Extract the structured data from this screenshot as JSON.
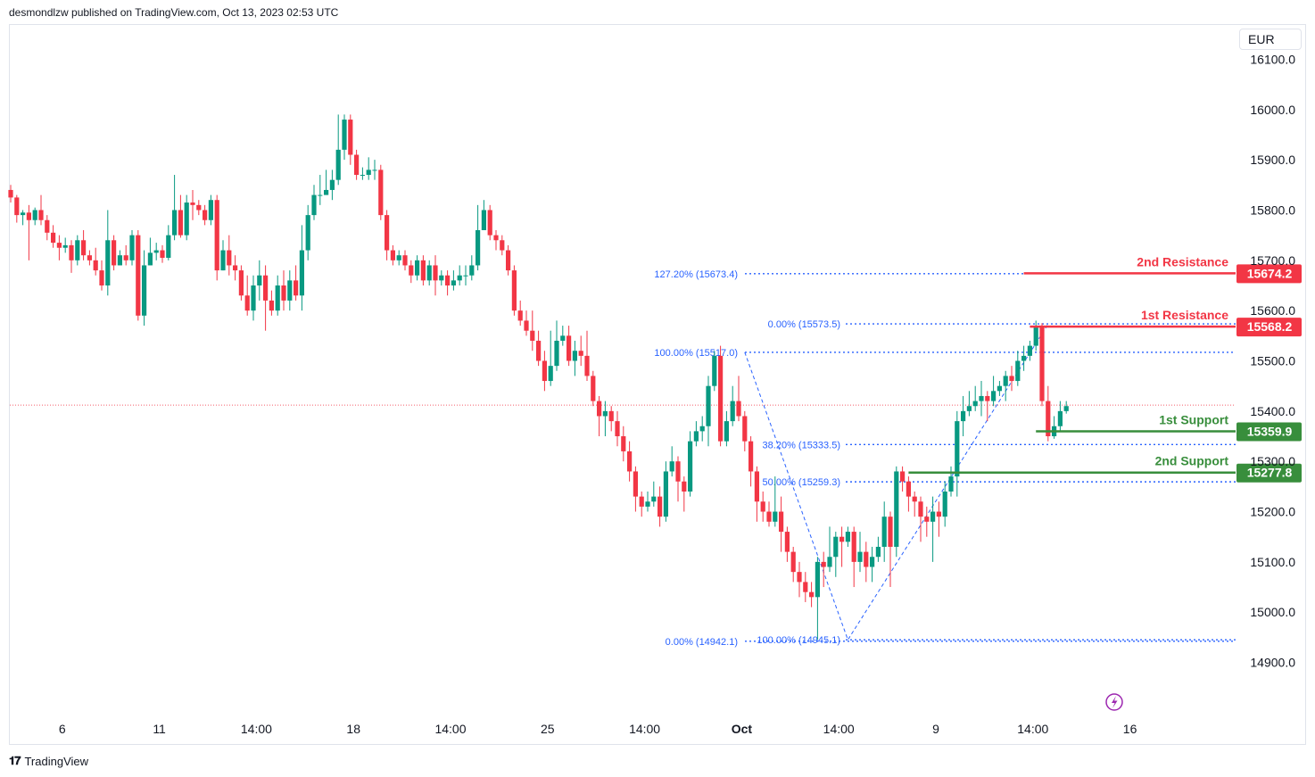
{
  "header": {
    "published": "desmondlzw published on TradingView.com, Oct 13, 2023 02:53 UTC"
  },
  "currency": "EUR",
  "footer": {
    "brand": "TradingView",
    "brand_icon": "tradingview-logo-icon"
  },
  "colors": {
    "up": "#089981",
    "down": "#f23645",
    "fib": "#2962ff",
    "fib_text": "#2962ff",
    "resistance": "#f23645",
    "support": "#388e3c",
    "last_price": "#f23645"
  },
  "chart_data": {
    "type": "candlestick",
    "title": "",
    "ylim": [
      14830,
      16115
    ],
    "y_ticks": [
      16100.0,
      16000.0,
      15900.0,
      15800.0,
      15700.0,
      15600.0,
      15500.0,
      15400.0,
      15300.0,
      15200.0,
      15100.0,
      15000.0,
      14900.0
    ],
    "x_ticks": [
      {
        "label": "6",
        "bar": 8.5
      },
      {
        "label": "11",
        "bar": 24.5
      },
      {
        "label": "14:00",
        "bar": 40.5
      },
      {
        "label": "18",
        "bar": 56.5
      },
      {
        "label": "14:00",
        "bar": 72.5
      },
      {
        "label": "25",
        "bar": 88.5
      },
      {
        "label": "14:00",
        "bar": 104.5
      },
      {
        "label": "Oct",
        "bar": 120.5,
        "bold": true
      },
      {
        "label": "14:00",
        "bar": 136.5
      },
      {
        "label": "9",
        "bar": 152.5
      },
      {
        "label": "14:00",
        "bar": 168.5
      },
      {
        "label": "16",
        "bar": 184.5
      }
    ],
    "current_price": 15412,
    "candles": [
      [
        15840,
        15825,
        15850,
        15815
      ],
      [
        15825,
        15790,
        15830,
        15775
      ],
      [
        15790,
        15795,
        15800,
        15770
      ],
      [
        15795,
        15780,
        15810,
        15700
      ],
      [
        15780,
        15800,
        15805,
        15770
      ],
      [
        15800,
        15780,
        15830,
        15770
      ],
      [
        15780,
        15755,
        15790,
        15740
      ],
      [
        15755,
        15735,
        15770,
        15725
      ],
      [
        15735,
        15725,
        15750,
        15700
      ],
      [
        15725,
        15730,
        15745,
        15715
      ],
      [
        15730,
        15700,
        15740,
        15675
      ],
      [
        15700,
        15740,
        15750,
        15690
      ],
      [
        15740,
        15710,
        15760,
        15700
      ],
      [
        15710,
        15700,
        15720,
        15690
      ],
      [
        15700,
        15680,
        15725,
        15670
      ],
      [
        15680,
        15650,
        15700,
        15640
      ],
      [
        15650,
        15740,
        15800,
        15630
      ],
      [
        15740,
        15690,
        15750,
        15680
      ],
      [
        15690,
        15710,
        15720,
        15690
      ],
      [
        15710,
        15700,
        15730,
        15690
      ],
      [
        15700,
        15750,
        15760,
        15690
      ],
      [
        15750,
        15590,
        15760,
        15580
      ],
      [
        15590,
        15690,
        15720,
        15570
      ],
      [
        15690,
        15715,
        15745,
        15690
      ],
      [
        15715,
        15720,
        15735,
        15700
      ],
      [
        15720,
        15705,
        15730,
        15695
      ],
      [
        15705,
        15750,
        15770,
        15700
      ],
      [
        15750,
        15800,
        15870,
        15740
      ],
      [
        15800,
        15750,
        15830,
        15745
      ],
      [
        15750,
        15815,
        15830,
        15740
      ],
      [
        15815,
        15810,
        15840,
        15780
      ],
      [
        15810,
        15800,
        15820,
        15790
      ],
      [
        15800,
        15780,
        15810,
        15770
      ],
      [
        15780,
        15820,
        15830,
        15770
      ],
      [
        15820,
        15680,
        15830,
        15660
      ],
      [
        15680,
        15720,
        15740,
        15680
      ],
      [
        15720,
        15690,
        15750,
        15670
      ],
      [
        15690,
        15680,
        15710,
        15660
      ],
      [
        15680,
        15630,
        15690,
        15620
      ],
      [
        15630,
        15600,
        15670,
        15590
      ],
      [
        15600,
        15650,
        15670,
        15580
      ],
      [
        15650,
        15670,
        15700,
        15620
      ],
      [
        15670,
        15620,
        15690,
        15560
      ],
      [
        15620,
        15600,
        15640,
        15590
      ],
      [
        15600,
        15650,
        15670,
        15590
      ],
      [
        15650,
        15620,
        15680,
        15600
      ],
      [
        15620,
        15660,
        15680,
        15600
      ],
      [
        15660,
        15630,
        15690,
        15620
      ],
      [
        15630,
        15720,
        15770,
        15600
      ],
      [
        15720,
        15790,
        15810,
        15700
      ],
      [
        15790,
        15830,
        15850,
        15780
      ],
      [
        15830,
        15830,
        15870,
        15810
      ],
      [
        15830,
        15840,
        15880,
        15830
      ],
      [
        15840,
        15860,
        15880,
        15820
      ],
      [
        15860,
        15920,
        15990,
        15850
      ],
      [
        15920,
        15980,
        15990,
        15900
      ],
      [
        15980,
        15910,
        15990,
        15890
      ],
      [
        15910,
        15870,
        15920,
        15860
      ],
      [
        15870,
        15870,
        15885,
        15860
      ],
      [
        15870,
        15880,
        15905,
        15860
      ],
      [
        15880,
        15880,
        15900,
        15860
      ],
      [
        15880,
        15790,
        15890,
        15780
      ],
      [
        15790,
        15720,
        15800,
        15700
      ],
      [
        15720,
        15700,
        15730,
        15690
      ],
      [
        15700,
        15710,
        15720,
        15690
      ],
      [
        15710,
        15690,
        15720,
        15680
      ],
      [
        15690,
        15670,
        15700,
        15655
      ],
      [
        15670,
        15700,
        15710,
        15660
      ],
      [
        15700,
        15660,
        15710,
        15650
      ],
      [
        15660,
        15690,
        15700,
        15650
      ],
      [
        15690,
        15660,
        15710,
        15630
      ],
      [
        15660,
        15670,
        15680,
        15650
      ],
      [
        15670,
        15650,
        15680,
        15630
      ],
      [
        15650,
        15660,
        15680,
        15640
      ],
      [
        15660,
        15670,
        15690,
        15650
      ],
      [
        15670,
        15670,
        15690,
        15650
      ],
      [
        15670,
        15690,
        15710,
        15660
      ],
      [
        15690,
        15760,
        15810,
        15680
      ],
      [
        15760,
        15800,
        15820,
        15760
      ],
      [
        15800,
        15750,
        15810,
        15740
      ],
      [
        15750,
        15740,
        15760,
        15720
      ],
      [
        15740,
        15720,
        15750,
        15710
      ],
      [
        15720,
        15680,
        15730,
        15670
      ],
      [
        15680,
        15600,
        15690,
        15590
      ],
      [
        15600,
        15580,
        15620,
        15570
      ],
      [
        15580,
        15560,
        15600,
        15550
      ],
      [
        15560,
        15540,
        15600,
        15520
      ],
      [
        15540,
        15500,
        15560,
        15490
      ],
      [
        15500,
        15460,
        15520,
        15440
      ],
      [
        15460,
        15490,
        15560,
        15450
      ],
      [
        15490,
        15540,
        15580,
        15480
      ],
      [
        15540,
        15550,
        15570,
        15530
      ],
      [
        15550,
        15500,
        15570,
        15490
      ],
      [
        15500,
        15520,
        15540,
        15470
      ],
      [
        15520,
        15510,
        15550,
        15490
      ],
      [
        15510,
        15470,
        15560,
        15460
      ],
      [
        15470,
        15420,
        15480,
        15410
      ],
      [
        15420,
        15390,
        15430,
        15350
      ],
      [
        15390,
        15400,
        15420,
        15350
      ],
      [
        15400,
        15380,
        15410,
        15360
      ],
      [
        15380,
        15350,
        15400,
        15330
      ],
      [
        15350,
        15320,
        15370,
        15300
      ],
      [
        15320,
        15280,
        15340,
        15260
      ],
      [
        15280,
        15230,
        15290,
        15200
      ],
      [
        15230,
        15210,
        15240,
        15190
      ],
      [
        15210,
        15220,
        15240,
        15200
      ],
      [
        15220,
        15230,
        15260,
        15210
      ],
      [
        15230,
        15190,
        15250,
        15170
      ],
      [
        15190,
        15280,
        15300,
        15180
      ],
      [
        15280,
        15300,
        15330,
        15270
      ],
      [
        15300,
        15260,
        15310,
        15220
      ],
      [
        15260,
        15240,
        15270,
        15200
      ],
      [
        15240,
        15340,
        15360,
        15230
      ],
      [
        15340,
        15360,
        15380,
        15330
      ],
      [
        15360,
        15370,
        15390,
        15340
      ],
      [
        15370,
        15450,
        15470,
        15330
      ],
      [
        15450,
        15510,
        15520,
        15440
      ],
      [
        15510,
        15340,
        15530,
        15330
      ],
      [
        15340,
        15380,
        15400,
        15330
      ],
      [
        15380,
        15420,
        15450,
        15370
      ],
      [
        15420,
        15390,
        15470,
        15380
      ],
      [
        15390,
        15340,
        15400,
        15320
      ],
      [
        15340,
        15280,
        15350,
        15250
      ],
      [
        15280,
        15220,
        15290,
        15180
      ],
      [
        15220,
        15200,
        15240,
        15180
      ],
      [
        15200,
        15180,
        15220,
        15170
      ],
      [
        15180,
        15200,
        15270,
        15170
      ],
      [
        15200,
        15160,
        15230,
        15120
      ],
      [
        15160,
        15120,
        15170,
        15100
      ],
      [
        15120,
        15080,
        15130,
        15060
      ],
      [
        15080,
        15060,
        15100,
        15030
      ],
      [
        15060,
        15040,
        15080,
        15020
      ],
      [
        15040,
        15030,
        15060,
        15010
      ],
      [
        15030,
        15100,
        15110,
        14945
      ],
      [
        15100,
        15090,
        15120,
        15050
      ],
      [
        15090,
        15110,
        15170,
        15080
      ],
      [
        15110,
        15150,
        15160,
        15070
      ],
      [
        15150,
        15140,
        15170,
        15090
      ],
      [
        15140,
        15160,
        15170,
        15130
      ],
      [
        15160,
        15100,
        15170,
        15050
      ],
      [
        15100,
        15120,
        15160,
        15080
      ],
      [
        15120,
        15090,
        15140,
        15060
      ],
      [
        15090,
        15110,
        15130,
        15060
      ],
      [
        15110,
        15130,
        15150,
        15100
      ],
      [
        15130,
        15190,
        15220,
        15100
      ],
      [
        15190,
        15130,
        15200,
        15050
      ],
      [
        15130,
        15280,
        15290,
        15110
      ],
      [
        15280,
        15260,
        15290,
        15240
      ],
      [
        15260,
        15230,
        15270,
        15200
      ],
      [
        15230,
        15220,
        15240,
        15190
      ],
      [
        15220,
        15190,
        15230,
        15140
      ],
      [
        15190,
        15180,
        15210,
        15150
      ],
      [
        15180,
        15200,
        15230,
        15100
      ],
      [
        15200,
        15190,
        15220,
        15150
      ],
      [
        15190,
        15240,
        15260,
        15170
      ],
      [
        15240,
        15270,
        15290,
        15230
      ],
      [
        15270,
        15380,
        15400,
        15230
      ],
      [
        15380,
        15400,
        15430,
        15350
      ],
      [
        15400,
        15410,
        15440,
        15390
      ],
      [
        15410,
        15420,
        15450,
        15400
      ],
      [
        15420,
        15430,
        15460,
        15390
      ],
      [
        15430,
        15420,
        15440,
        15380
      ],
      [
        15420,
        15440,
        15470,
        15410
      ],
      [
        15440,
        15450,
        15460,
        15430
      ],
      [
        15450,
        15470,
        15480,
        15420
      ],
      [
        15470,
        15460,
        15490,
        15440
      ],
      [
        15460,
        15500,
        15520,
        15450
      ],
      [
        15500,
        15510,
        15530,
        15480
      ],
      [
        15510,
        15530,
        15540,
        15500
      ],
      [
        15530,
        15570,
        15580,
        15520
      ],
      [
        15570,
        15420,
        15575,
        15410
      ],
      [
        15420,
        15350,
        15450,
        15340
      ],
      [
        15350,
        15370,
        15390,
        15345
      ],
      [
        15370,
        15400,
        15420,
        15360
      ],
      [
        15400,
        15410,
        15420,
        15395
      ]
    ],
    "fib_retracement": {
      "start_bar": 129,
      "end_bar": 145,
      "levels": [
        {
          "label": "0.00% (14942.1)",
          "value": 14942.1
        },
        {
          "label": "100.00% (15517.0)",
          "value": 15517.0
        },
        {
          "label": "127.20% (15673.4)",
          "value": 15673.4
        }
      ]
    },
    "fib_retracement_2": {
      "levels": [
        {
          "label": "0.00% (15573.5)",
          "value": 15573.5
        },
        {
          "label": "38.20% (15333.5)",
          "value": 15333.5
        },
        {
          "label": "50.00% (15259.3)",
          "value": 15259.3
        },
        {
          "label": "100.00% (14945.1)",
          "value": 14945.1
        }
      ]
    },
    "zigzag": [
      [
        121,
        15517
      ],
      [
        138,
        14945
      ],
      [
        171,
        15573
      ]
    ],
    "levels": [
      {
        "name": "2nd Resistance",
        "value": 15674.2,
        "label": "15674.2",
        "type": "resistance",
        "from_bar": 167
      },
      {
        "name": "1st Resistance",
        "value": 15568.2,
        "label": "15568.2",
        "type": "resistance",
        "from_bar": 168
      },
      {
        "name": "1st Support",
        "value": 15359.9,
        "label": "15359.9",
        "type": "support",
        "from_bar": 169
      },
      {
        "name": "2nd Support",
        "value": 15277.8,
        "label": "15277.8",
        "type": "support",
        "from_bar": 148
      }
    ],
    "indicator_icon": "lightning-icon"
  }
}
